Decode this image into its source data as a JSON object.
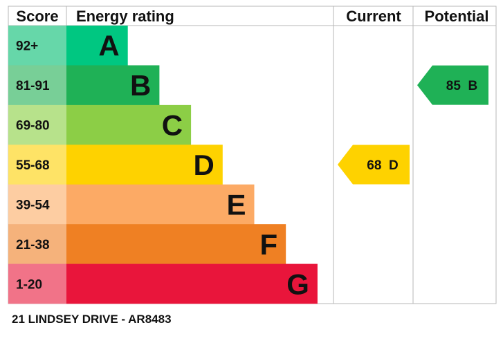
{
  "headers": {
    "score": "Score",
    "rating": "Energy rating",
    "current": "Current",
    "potential": "Potential"
  },
  "colors": {
    "band_bar": [
      "#00c781",
      "#1fb156",
      "#8cce46",
      "#fed200",
      "#fcaa65",
      "#ef8023",
      "#e9153b"
    ],
    "band_score_bg": [
      "#66d7a9",
      "#78cf97",
      "#b7e28b",
      "#fee366",
      "#fdcda2",
      "#f5b27b",
      "#f17388"
    ],
    "grid": "#b7b7b7"
  },
  "chart_data": {
    "type": "bar",
    "bands": [
      {
        "score": "92+",
        "letter": "A",
        "relative_width": 1
      },
      {
        "score": "81-91",
        "letter": "B",
        "relative_width": 2
      },
      {
        "score": "69-80",
        "letter": "C",
        "relative_width": 3
      },
      {
        "score": "55-68",
        "letter": "D",
        "relative_width": 4
      },
      {
        "score": "39-54",
        "letter": "E",
        "relative_width": 5
      },
      {
        "score": "21-38",
        "letter": "F",
        "relative_width": 6
      },
      {
        "score": "1-20",
        "letter": "G",
        "relative_width": 7
      }
    ],
    "current": {
      "value": 68,
      "letter": "D",
      "text": "68  D",
      "color": "#fed200"
    },
    "potential": {
      "value": 85,
      "letter": "B",
      "text": "85  B",
      "color": "#1fb156"
    }
  },
  "footer": "21 LINDSEY DRIVE - AR8483"
}
